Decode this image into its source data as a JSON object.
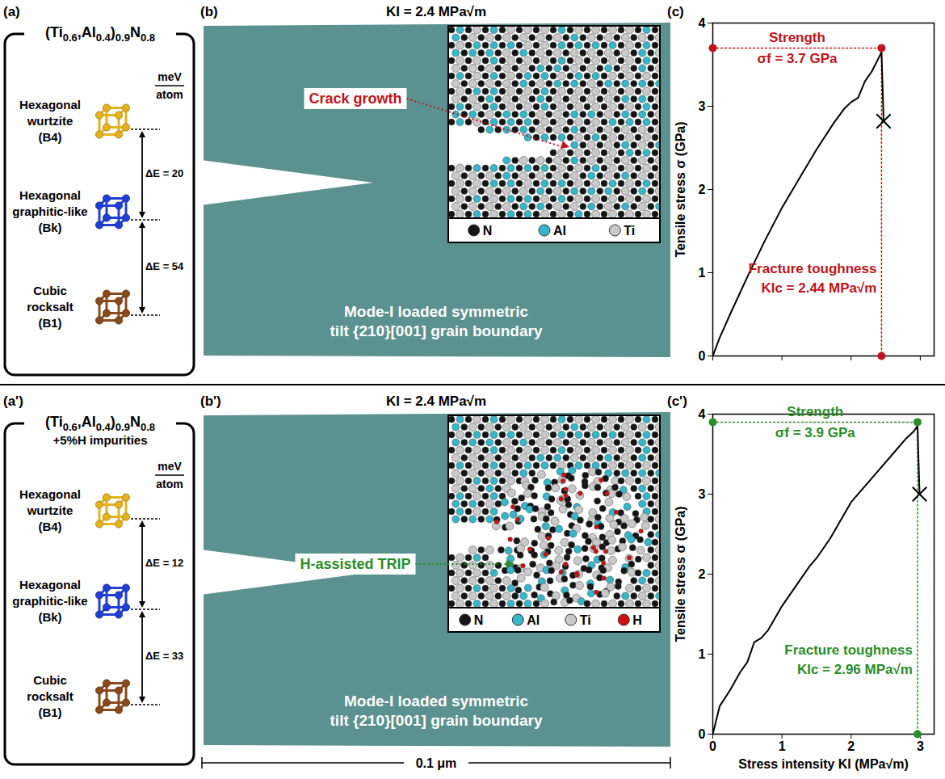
{
  "structures": [
    {
      "label": "(a)",
      "composition": "(Ti0.6,Al0.4)0.9N0.8",
      "unit": [
        "meV",
        "atom"
      ],
      "gap_prefix": "ΔE = ",
      "phases": [
        {
          "lines": [
            "Hexagonal",
            "wurtzite",
            "(B4)"
          ],
          "color": "#e6b31e"
        },
        {
          "lines": [
            "Hexagonal",
            "graphitic-like",
            "(Bk)"
          ],
          "color": "#1f3fd6"
        },
        {
          "lines": [
            "Cubic",
            "rocksalt",
            "(B1)"
          ],
          "color": "#8a4a1c"
        }
      ],
      "energy_gaps": [
        20,
        54
      ]
    },
    {
      "label": "(a')",
      "composition": "(Ti0.6,Al0.4)0.9N0.8",
      "composition_note": "+5%H impurities",
      "unit": [
        "meV",
        "atom"
      ],
      "gap_prefix": "ΔE = ",
      "phases": [
        {
          "lines": [
            "Hexagonal",
            "wurtzite",
            "(B4)"
          ],
          "color": "#e6b31e"
        },
        {
          "lines": [
            "Hexagonal",
            "graphitic-like",
            "(Bk)"
          ],
          "color": "#1f3fd6"
        },
        {
          "lines": [
            "Cubic",
            "rocksalt",
            "(B1)"
          ],
          "color": "#8a4a1c"
        }
      ],
      "energy_gaps": [
        12,
        33
      ]
    }
  ],
  "simulations": [
    {
      "label": "(b)",
      "title": "KI = 2.4 MPa√m",
      "annotation": "Crack growth",
      "annotation_color": "#c0141c",
      "caption": [
        "Mode-I loaded symmetric",
        "tilt {210}[001] grain boundary"
      ],
      "legend": [
        {
          "name": "N",
          "color": "#151515"
        },
        {
          "name": "Al",
          "color": "#35b6c9"
        },
        {
          "name": "Ti",
          "color": "#c9c9c9"
        }
      ]
    },
    {
      "label": "(b')",
      "title": "KI = 2.4 MPa√m",
      "annotation": "H-assisted TRIP",
      "annotation_color": "#2a8c2a",
      "caption": [
        "Mode-I loaded symmetric",
        "tilt {210}[001] grain boundary"
      ],
      "legend": [
        {
          "name": "N",
          "color": "#151515"
        },
        {
          "name": "Al",
          "color": "#35b6c9"
        },
        {
          "name": "Ti",
          "color": "#c9c9c9"
        },
        {
          "name": "H",
          "color": "#d01010"
        }
      ],
      "scale_bar": "0.1 μm"
    }
  ],
  "chart_data": [
    {
      "label": "(c)",
      "type": "line",
      "color": "#000000",
      "marker": "x",
      "x": [
        0,
        0.1,
        0.25,
        0.5,
        0.75,
        1.0,
        1.25,
        1.5,
        1.75,
        1.9,
        2.0,
        2.1,
        2.2,
        2.3,
        2.38,
        2.44,
        2.47
      ],
      "values": [
        0,
        0.22,
        0.5,
        0.95,
        1.38,
        1.78,
        2.13,
        2.48,
        2.8,
        2.97,
        3.05,
        3.1,
        3.3,
        3.42,
        3.55,
        3.65,
        2.82
      ],
      "xlim": [
        0,
        3.2
      ],
      "ylim": [
        0,
        4
      ],
      "xticks": [
        0,
        1,
        2,
        3
      ],
      "yticks": [
        0,
        1,
        2,
        3,
        4
      ],
      "tick_labels": "y",
      "y_label": "Tensile stress σ (GPa)",
      "annotation_color": "#c0141c",
      "strength": {
        "title": "Strength",
        "text": "σf = 3.7 GPa",
        "value": 3.7
      },
      "toughness": {
        "title": "Fracture toughness",
        "text": "KIc = 2.44 MPa√m",
        "value": 2.44
      }
    },
    {
      "label": "(c')",
      "type": "line",
      "color": "#000000",
      "marker": "x",
      "x": [
        0,
        0.1,
        0.25,
        0.4,
        0.5,
        0.6,
        0.7,
        0.8,
        1.0,
        1.2,
        1.4,
        1.5,
        1.7,
        1.9,
        2.0,
        2.2,
        2.4,
        2.6,
        2.8,
        2.9,
        2.96,
        2.99
      ],
      "values": [
        0,
        0.35,
        0.55,
        0.78,
        0.9,
        1.15,
        1.2,
        1.3,
        1.6,
        1.85,
        2.1,
        2.2,
        2.45,
        2.75,
        2.9,
        3.1,
        3.3,
        3.5,
        3.7,
        3.78,
        3.85,
        3.0
      ],
      "xlim": [
        0,
        3.2
      ],
      "ylim": [
        0,
        4
      ],
      "xticks": [
        0,
        1,
        2,
        3
      ],
      "yticks": [
        0,
        1,
        2,
        3,
        4
      ],
      "x_label": "Stress intensity KI (MPa√m)",
      "y_label": "Tensile stress σ (GPa)",
      "annotation_color": "#2a8c2a",
      "strength": {
        "title": "Strength",
        "text": "σf = 3.9 GPa",
        "value": 3.9
      },
      "toughness": {
        "title": "Fracture toughness",
        "text": "KIc = 2.96 MPa√m",
        "value": 2.96
      }
    }
  ]
}
